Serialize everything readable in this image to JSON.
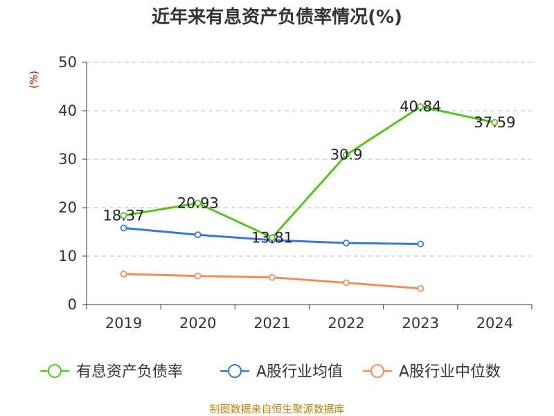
{
  "chart_data": {
    "type": "line",
    "title": "近年来有息资产负债率情况(%)",
    "ylabel": "(%)",
    "xlabel": "",
    "categories": [
      "2019",
      "2020",
      "2021",
      "2022",
      "2023",
      "2024"
    ],
    "ylim": [
      0,
      50
    ],
    "yticks": [
      0,
      10,
      20,
      30,
      40,
      50
    ],
    "grid": true,
    "legend_position": "bottom",
    "series": [
      {
        "name": "有息资产负债率",
        "color": "#52c41a",
        "values": [
          18.37,
          20.93,
          13.81,
          30.9,
          40.84,
          37.59
        ],
        "labels": [
          "18.37",
          "20.93",
          "13.81",
          "30.9",
          "40.84",
          "37.59"
        ]
      },
      {
        "name": "A股行业均值",
        "color": "#3a78d8",
        "values": [
          15.8,
          14.4,
          13.3,
          12.7,
          12.5,
          null
        ]
      },
      {
        "name": "A股行业中位数",
        "color": "#f28c5a",
        "values": [
          6.3,
          5.9,
          5.6,
          4.5,
          3.3,
          null
        ]
      }
    ],
    "source": "制图数据来自恒生聚源数据库"
  }
}
